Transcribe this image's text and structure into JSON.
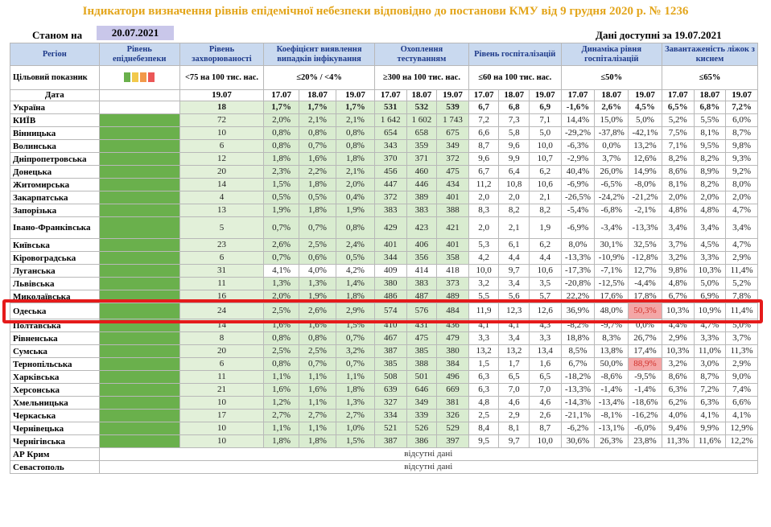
{
  "title": "Індикатори визначення рівнів епідемічної небезпеки відповідно до постанови КМУ від 9 грудня 2020 р. № 1236",
  "as_of_label": "Станом на",
  "as_of_date": "20.07.2021",
  "data_available": "Дані доступні за 19.07.2021",
  "headers": {
    "region": "Регіон",
    "level": "Рівень епіднебезпеки",
    "incidence": "Рівень захворюваності",
    "detection": "Коефіцієнт виявлення випадків інфікування",
    "testing": "Охоплення тестуванням",
    "hosp": "Рівень госпіталізацій",
    "hosp_dyn": "Динаміка рівня госпіталізацій",
    "beds": "Завантаженість ліжок з киснем"
  },
  "target": {
    "label": "Цільовий показник",
    "incidence": "<75 на 100 тис. нас.",
    "detection": "≤20% / <4%",
    "testing": "≥300 на 100 тис. нас.",
    "hosp": "≤60 на 100 тис. нас.",
    "hosp_dyn": "≤50%",
    "beds": "≤65%",
    "colors": [
      "#6ab04c",
      "#f2c94c",
      "#f2994a",
      "#eb5757"
    ]
  },
  "date_row": {
    "label": "Дата",
    "incidence": "19.07",
    "dates": [
      "17.07",
      "18.07",
      "19.07"
    ]
  },
  "rows": [
    {
      "region": "Україна",
      "inc": "18",
      "det": [
        "1,7%",
        "1,7%",
        "1,7%"
      ],
      "test": [
        "531",
        "532",
        "539"
      ],
      "hosp": [
        "6,7",
        "6,8",
        "6,9"
      ],
      "dyn": [
        "-1,6%",
        "2,6%",
        "4,5%"
      ],
      "beds": [
        "6,5%",
        "6,8%",
        "7,2%"
      ]
    },
    {
      "region": "КИЇВ",
      "inc": "72",
      "det": [
        "2,0%",
        "2,1%",
        "2,1%"
      ],
      "test": [
        "1 642",
        "1 602",
        "1 743"
      ],
      "hosp": [
        "7,2",
        "7,3",
        "7,1"
      ],
      "dyn": [
        "14,4%",
        "15,0%",
        "5,0%"
      ],
      "beds": [
        "5,2%",
        "5,5%",
        "6,0%"
      ]
    },
    {
      "region": "Вінницька",
      "inc": "10",
      "det": [
        "0,8%",
        "0,8%",
        "0,8%"
      ],
      "test": [
        "654",
        "658",
        "675"
      ],
      "hosp": [
        "6,6",
        "5,8",
        "5,0"
      ],
      "dyn": [
        "-29,2%",
        "-37,8%",
        "-42,1%"
      ],
      "beds": [
        "7,5%",
        "8,1%",
        "8,7%"
      ]
    },
    {
      "region": "Волинська",
      "inc": "6",
      "det": [
        "0,8%",
        "0,7%",
        "0,8%"
      ],
      "test": [
        "343",
        "359",
        "349"
      ],
      "hosp": [
        "8,7",
        "9,6",
        "10,0"
      ],
      "dyn": [
        "-6,3%",
        "0,0%",
        "13,2%"
      ],
      "beds": [
        "7,1%",
        "9,5%",
        "9,8%"
      ]
    },
    {
      "region": "Дніпропетровська",
      "inc": "12",
      "det": [
        "1,8%",
        "1,6%",
        "1,8%"
      ],
      "test": [
        "370",
        "371",
        "372"
      ],
      "hosp": [
        "9,6",
        "9,9",
        "10,7"
      ],
      "dyn": [
        "-2,9%",
        "3,7%",
        "12,6%"
      ],
      "beds": [
        "8,2%",
        "8,2%",
        "9,3%"
      ]
    },
    {
      "region": "Донецька",
      "inc": "20",
      "det": [
        "2,3%",
        "2,2%",
        "2,1%"
      ],
      "test": [
        "456",
        "460",
        "475"
      ],
      "hosp": [
        "6,7",
        "6,4",
        "6,2"
      ],
      "dyn": [
        "40,4%",
        "26,0%",
        "14,9%"
      ],
      "beds": [
        "8,6%",
        "8,9%",
        "9,2%"
      ]
    },
    {
      "region": "Житомирська",
      "inc": "14",
      "det": [
        "1,5%",
        "1,8%",
        "2,0%"
      ],
      "test": [
        "447",
        "446",
        "434"
      ],
      "hosp": [
        "11,2",
        "10,8",
        "10,6"
      ],
      "dyn": [
        "-6,9%",
        "-6,5%",
        "-8,0%"
      ],
      "beds": [
        "8,1%",
        "8,2%",
        "8,0%"
      ]
    },
    {
      "region": "Закарпатська",
      "inc": "4",
      "det": [
        "0,5%",
        "0,5%",
        "0,4%"
      ],
      "test": [
        "372",
        "389",
        "401"
      ],
      "hosp": [
        "2,0",
        "2,0",
        "2,1"
      ],
      "dyn": [
        "-26,5%",
        "-24,2%",
        "-21,2%"
      ],
      "beds": [
        "2,0%",
        "2,0%",
        "2,0%"
      ]
    },
    {
      "region": "Запорізька",
      "inc": "13",
      "det": [
        "1,9%",
        "1,8%",
        "1,9%"
      ],
      "test": [
        "383",
        "383",
        "388"
      ],
      "hosp": [
        "8,3",
        "8,2",
        "8,2"
      ],
      "dyn": [
        "-5,4%",
        "-6,8%",
        "-2,1%"
      ],
      "beds": [
        "4,8%",
        "4,8%",
        "4,7%"
      ]
    },
    {
      "region": "Івано-Франківська",
      "inc": "5",
      "det": [
        "0,7%",
        "0,7%",
        "0,8%"
      ],
      "test": [
        "429",
        "423",
        "421"
      ],
      "hosp": [
        "2,0",
        "2,1",
        "1,9"
      ],
      "dyn": [
        "-6,9%",
        "-3,4%",
        "-13,3%"
      ],
      "beds": [
        "3,4%",
        "3,4%",
        "3,4%"
      ]
    },
    {
      "region": "Київська",
      "inc": "23",
      "det": [
        "2,6%",
        "2,5%",
        "2,4%"
      ],
      "test": [
        "401",
        "406",
        "401"
      ],
      "hosp": [
        "5,3",
        "6,1",
        "6,2"
      ],
      "dyn": [
        "8,0%",
        "30,1%",
        "32,5%"
      ],
      "beds": [
        "3,7%",
        "4,5%",
        "4,7%"
      ]
    },
    {
      "region": "Кіровоградська",
      "inc": "6",
      "det": [
        "0,7%",
        "0,6%",
        "0,5%"
      ],
      "test": [
        "344",
        "356",
        "358"
      ],
      "hosp": [
        "4,2",
        "4,4",
        "4,4"
      ],
      "dyn": [
        "-13,3%",
        "-10,9%",
        "-12,8%"
      ],
      "beds": [
        "3,2%",
        "3,3%",
        "2,9%"
      ]
    },
    {
      "region": "Луганська",
      "inc": "31",
      "det": [
        "4,1%",
        "4,0%",
        "4,2%"
      ],
      "test": [
        "409",
        "414",
        "418"
      ],
      "hosp": [
        "10,0",
        "9,7",
        "10,6"
      ],
      "dyn": [
        "-17,3%",
        "-7,1%",
        "12,7%"
      ],
      "beds": [
        "9,8%",
        "10,3%",
        "11,4%"
      ]
    },
    {
      "region": "Львівська",
      "inc": "11",
      "det": [
        "1,3%",
        "1,3%",
        "1,4%"
      ],
      "test": [
        "380",
        "383",
        "373"
      ],
      "hosp": [
        "3,2",
        "3,4",
        "3,5"
      ],
      "dyn": [
        "-20,8%",
        "-12,5%",
        "-4,4%"
      ],
      "beds": [
        "4,8%",
        "5,0%",
        "5,2%"
      ]
    },
    {
      "region": "Миколаївська",
      "inc": "16",
      "det": [
        "2,0%",
        "1,9%",
        "1,8%"
      ],
      "test": [
        "486",
        "487",
        "489"
      ],
      "hosp": [
        "5,5",
        "5,6",
        "5,7"
      ],
      "dyn": [
        "22,2%",
        "17,6%",
        "17,8%"
      ],
      "beds": [
        "6,7%",
        "6,9%",
        "7,8%"
      ]
    },
    {
      "region": "Одеська",
      "inc": "24",
      "det": [
        "2,5%",
        "2,6%",
        "2,9%"
      ],
      "test": [
        "574",
        "576",
        "484"
      ],
      "hosp": [
        "11,9",
        "12,3",
        "12,6"
      ],
      "dyn": [
        "36,9%",
        "48,0%",
        "50,3%"
      ],
      "beds": [
        "10,3%",
        "10,9%",
        "11,4%"
      ]
    },
    {
      "region": "Полтавська",
      "inc": "14",
      "det": [
        "1,6%",
        "1,6%",
        "1,5%"
      ],
      "test": [
        "410",
        "431",
        "436"
      ],
      "hosp": [
        "4,1",
        "4,1",
        "4,3"
      ],
      "dyn": [
        "-8,2%",
        "-9,7%",
        "0,0%"
      ],
      "beds": [
        "4,4%",
        "4,7%",
        "5,0%"
      ]
    },
    {
      "region": "Рівненська",
      "inc": "8",
      "det": [
        "0,8%",
        "0,8%",
        "0,7%"
      ],
      "test": [
        "467",
        "475",
        "479"
      ],
      "hosp": [
        "3,3",
        "3,4",
        "3,3"
      ],
      "dyn": [
        "18,8%",
        "8,3%",
        "26,7%"
      ],
      "beds": [
        "2,9%",
        "3,3%",
        "3,7%"
      ]
    },
    {
      "region": "Сумська",
      "inc": "20",
      "det": [
        "2,5%",
        "2,5%",
        "3,2%"
      ],
      "test": [
        "387",
        "385",
        "380"
      ],
      "hosp": [
        "13,2",
        "13,2",
        "13,4"
      ],
      "dyn": [
        "8,5%",
        "13,8%",
        "17,4%"
      ],
      "beds": [
        "10,3%",
        "11,0%",
        "11,3%"
      ]
    },
    {
      "region": "Тернопільська",
      "inc": "6",
      "det": [
        "0,8%",
        "0,7%",
        "0,7%"
      ],
      "test": [
        "385",
        "388",
        "384"
      ],
      "hosp": [
        "1,5",
        "1,7",
        "1,6"
      ],
      "dyn": [
        "6,7%",
        "50,0%",
        "88,9%"
      ],
      "beds": [
        "3,2%",
        "3,0%",
        "2,9%"
      ]
    },
    {
      "region": "Харківська",
      "inc": "11",
      "det": [
        "1,1%",
        "1,1%",
        "1,1%"
      ],
      "test": [
        "508",
        "501",
        "496"
      ],
      "hosp": [
        "6,3",
        "6,5",
        "6,5"
      ],
      "dyn": [
        "-18,2%",
        "-8,6%",
        "-9,5%"
      ],
      "beds": [
        "8,6%",
        "8,7%",
        "9,0%"
      ]
    },
    {
      "region": "Херсонська",
      "inc": "21",
      "det": [
        "1,6%",
        "1,6%",
        "1,8%"
      ],
      "test": [
        "639",
        "646",
        "669"
      ],
      "hosp": [
        "6,3",
        "7,0",
        "7,0"
      ],
      "dyn": [
        "-13,3%",
        "-1,4%",
        "-1,4%"
      ],
      "beds": [
        "6,3%",
        "7,2%",
        "7,4%"
      ]
    },
    {
      "region": "Хмельницька",
      "inc": "10",
      "det": [
        "1,2%",
        "1,1%",
        "1,3%"
      ],
      "test": [
        "327",
        "349",
        "381"
      ],
      "hosp": [
        "4,8",
        "4,6",
        "4,6"
      ],
      "dyn": [
        "-14,3%",
        "-13,4%",
        "-18,6%"
      ],
      "beds": [
        "6,2%",
        "6,3%",
        "6,6%"
      ]
    },
    {
      "region": "Черкаська",
      "inc": "17",
      "det": [
        "2,7%",
        "2,7%",
        "2,7%"
      ],
      "test": [
        "334",
        "339",
        "326"
      ],
      "hosp": [
        "2,5",
        "2,9",
        "2,6"
      ],
      "dyn": [
        "-21,1%",
        "-8,1%",
        "-16,2%"
      ],
      "beds": [
        "4,0%",
        "4,1%",
        "4,1%"
      ]
    },
    {
      "region": "Чернівецька",
      "inc": "10",
      "det": [
        "1,1%",
        "1,1%",
        "1,0%"
      ],
      "test": [
        "521",
        "526",
        "529"
      ],
      "hosp": [
        "8,4",
        "8,1",
        "8,7"
      ],
      "dyn": [
        "-6,2%",
        "-13,1%",
        "-6,0%"
      ],
      "beds": [
        "9,4%",
        "9,9%",
        "12,9%"
      ]
    },
    {
      "region": "Чернігівська",
      "inc": "10",
      "det": [
        "1,8%",
        "1,8%",
        "1,5%"
      ],
      "test": [
        "387",
        "386",
        "397"
      ],
      "hosp": [
        "9,5",
        "9,7",
        "10,0"
      ],
      "dyn": [
        "30,6%",
        "26,3%",
        "23,8%"
      ],
      "beds": [
        "11,3%",
        "11,6%",
        "12,2%"
      ]
    }
  ],
  "missing_rows": [
    {
      "region": "АР Крим",
      "text": "відсутні дані"
    },
    {
      "region": "Севастополь",
      "text": "відсутні дані"
    }
  ],
  "highlight_color": "#e51b1b",
  "pink_color": "#f4a6a6"
}
